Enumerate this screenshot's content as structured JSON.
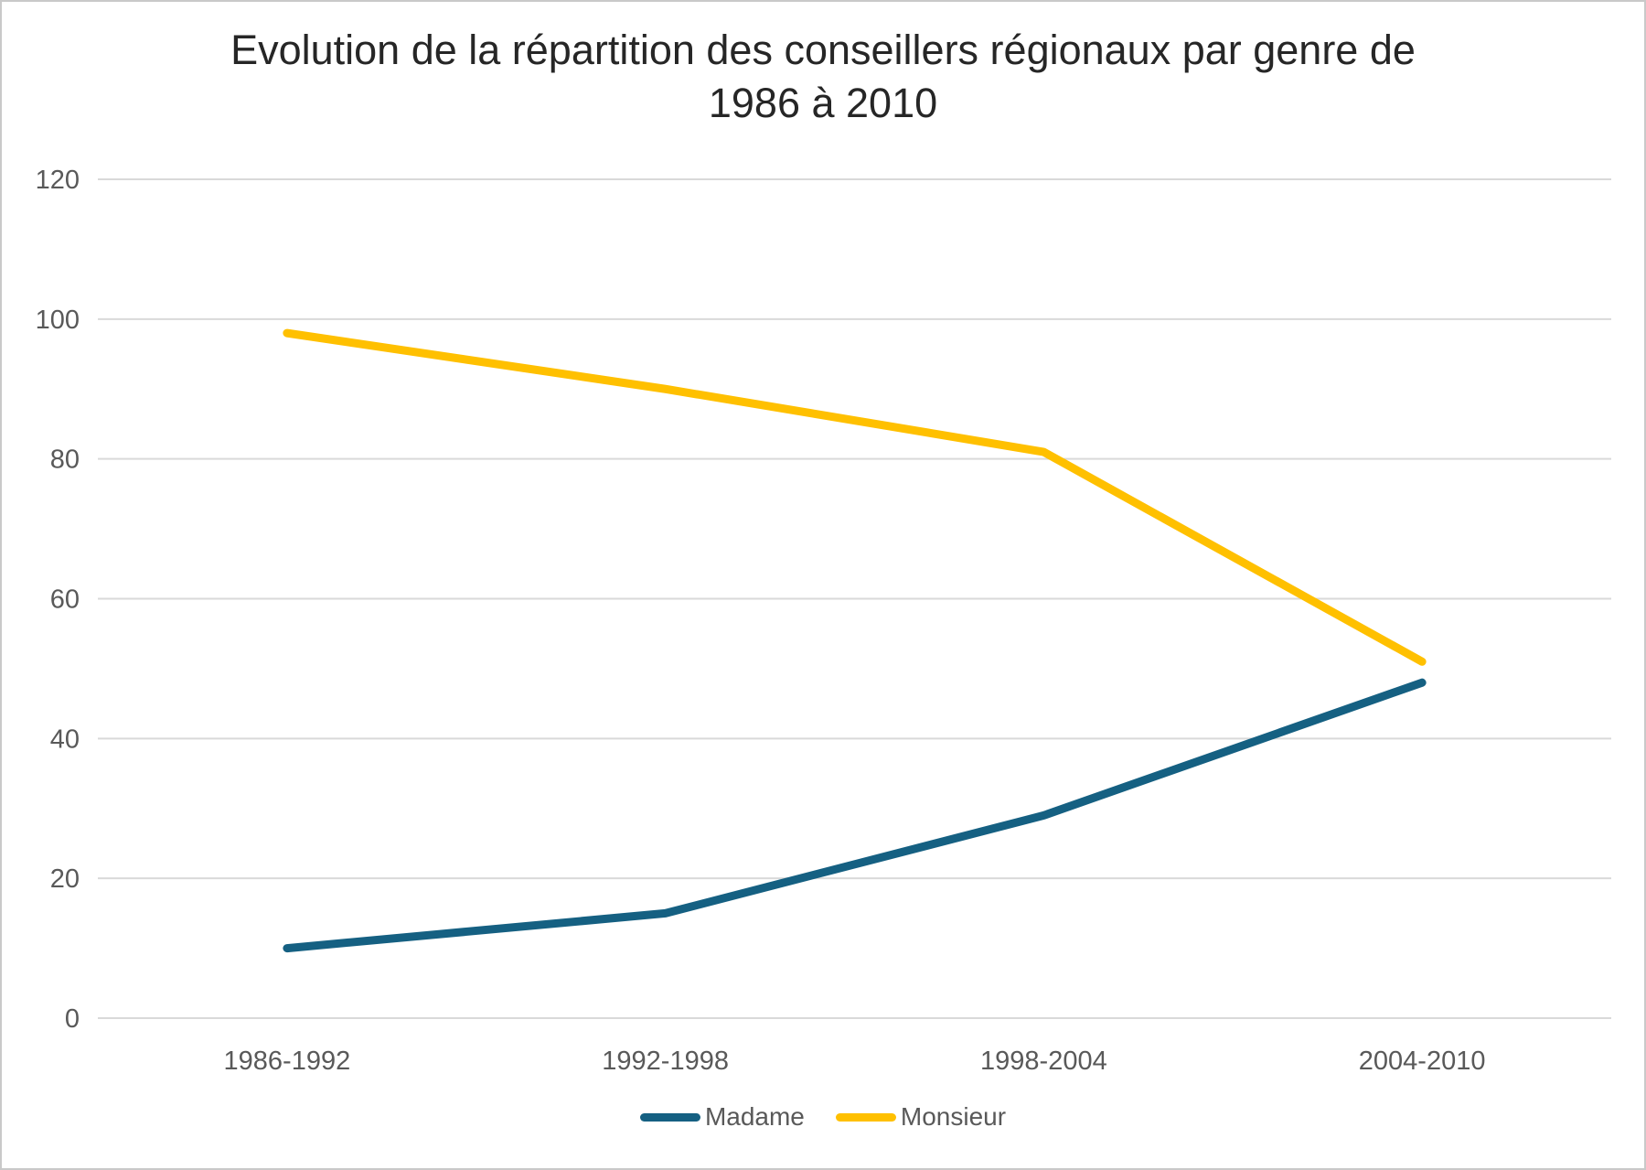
{
  "title_lines": [
    "Evolution de la répartition des conseillers régionaux par genre de",
    "1986 à 2010"
  ],
  "chart_data": {
    "type": "line",
    "title": "Evolution de la répartition des conseillers régionaux par genre de 1986 à 2010",
    "categories": [
      "1986-1992",
      "1992-1998",
      "1998-2004",
      "2004-2010"
    ],
    "series": [
      {
        "name": "Madame",
        "values": [
          10,
          15,
          29,
          48
        ],
        "color": "#156082"
      },
      {
        "name": "Monsieur",
        "values": [
          98,
          90,
          81,
          51
        ],
        "color": "#FFC000"
      }
    ],
    "xlabel": "",
    "ylabel": "",
    "ylim": [
      0,
      120
    ],
    "yticks": [
      0,
      20,
      40,
      60,
      80,
      100,
      120
    ],
    "grid": true,
    "legend_position": "bottom"
  },
  "colors": {
    "title_text": "#262626",
    "axis_text": "#595959",
    "gridline": "#D9D9D9",
    "background": "#FFFFFF",
    "border": "#C9C9C9"
  }
}
